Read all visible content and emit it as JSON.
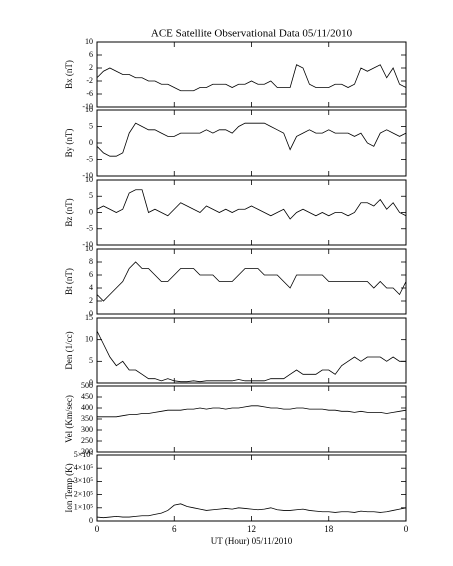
{
  "chart_data": [
    {
      "type": "line",
      "title": "ACE Satellite Observational Data   05/11/2010",
      "y_label": "Bx (nT)",
      "x": [
        0,
        0.5,
        1,
        1.5,
        2,
        2.5,
        3,
        3.5,
        4,
        4.5,
        5,
        5.5,
        6,
        6.5,
        7,
        7.5,
        8,
        8.5,
        9,
        9.5,
        10,
        10.5,
        11,
        11.5,
        12,
        12.5,
        13,
        13.5,
        14,
        14.5,
        15,
        15.5,
        16,
        16.5,
        17,
        17.5,
        18,
        18.5,
        19,
        19.5,
        20,
        20.5,
        21,
        21.5,
        22,
        22.5,
        23,
        23.5,
        24
      ],
      "values": [
        -1,
        1,
        2,
        1,
        0,
        0,
        -1,
        -1,
        -2,
        -2,
        -3,
        -3,
        -4,
        -5,
        -5,
        -5,
        -4,
        -4,
        -3,
        -3,
        -3,
        -4,
        -3,
        -3,
        -2,
        -3,
        -3,
        -2,
        -4,
        -4,
        -4,
        3,
        2,
        -3,
        -4,
        -4,
        -4,
        -3,
        -3,
        -4,
        -3,
        2,
        1,
        2,
        3,
        -1,
        2,
        -3,
        -4
      ],
      "color": "#000000",
      "xlim": [
        0,
        24
      ],
      "xticks": [
        0,
        6,
        12,
        18,
        24
      ],
      "ylim": [
        -10,
        10
      ],
      "yticks": [
        -10,
        -6,
        -2,
        2,
        6,
        10
      ]
    },
    {
      "type": "line",
      "y_label": "By (nT)",
      "x": [
        0,
        0.5,
        1,
        1.5,
        2,
        2.5,
        3,
        3.5,
        4,
        4.5,
        5,
        5.5,
        6,
        6.5,
        7,
        7.5,
        8,
        8.5,
        9,
        9.5,
        10,
        10.5,
        11,
        11.5,
        12,
        12.5,
        13,
        13.5,
        14,
        14.5,
        15,
        15.5,
        16,
        16.5,
        17,
        17.5,
        18,
        18.5,
        19,
        19.5,
        20,
        20.5,
        21,
        21.5,
        22,
        22.5,
        23,
        23.5,
        24
      ],
      "values": [
        -1,
        -3,
        -4,
        -4,
        -3,
        3,
        6,
        5,
        4,
        4,
        3,
        2,
        2,
        3,
        3,
        3,
        3,
        4,
        3,
        4,
        4,
        3,
        5,
        6,
        6,
        6,
        6,
        5,
        4,
        3,
        -2,
        2,
        3,
        4,
        3,
        3,
        4,
        3,
        3,
        3,
        2,
        3,
        0,
        -1,
        3,
        4,
        3,
        2,
        3
      ],
      "color": "#000000",
      "xlim": [
        0,
        24
      ],
      "xticks": [
        0,
        6,
        12,
        18,
        24
      ],
      "ylim": [
        -10,
        10
      ],
      "yticks": [
        -10,
        -5,
        0,
        5,
        10
      ]
    },
    {
      "type": "line",
      "y_label": "Bz (nT)",
      "x": [
        0,
        0.5,
        1,
        1.5,
        2,
        2.5,
        3,
        3.5,
        4,
        4.5,
        5,
        5.5,
        6,
        6.5,
        7,
        7.5,
        8,
        8.5,
        9,
        9.5,
        10,
        10.5,
        11,
        11.5,
        12,
        12.5,
        13,
        13.5,
        14,
        14.5,
        15,
        15.5,
        16,
        16.5,
        17,
        17.5,
        18,
        18.5,
        19,
        19.5,
        20,
        20.5,
        21,
        21.5,
        22,
        22.5,
        23,
        23.5,
        24
      ],
      "values": [
        1,
        2,
        1,
        0,
        1,
        6,
        7,
        7,
        0,
        1,
        0,
        -1,
        1,
        3,
        2,
        1,
        0,
        2,
        1,
        0,
        1,
        0,
        1,
        1,
        2,
        1,
        0,
        -1,
        0,
        1,
        -2,
        0,
        1,
        0,
        -1,
        0,
        -1,
        0,
        0,
        -1,
        0,
        3,
        3,
        2,
        4,
        1,
        3,
        0,
        -1
      ],
      "color": "#000000",
      "xlim": [
        0,
        24
      ],
      "xticks": [
        0,
        6,
        12,
        18,
        24
      ],
      "ylim": [
        -10,
        10
      ],
      "yticks": [
        -10,
        -5,
        0,
        5,
        10
      ]
    },
    {
      "type": "line",
      "y_label": "Bt (nT)",
      "x": [
        0,
        0.5,
        1,
        1.5,
        2,
        2.5,
        3,
        3.5,
        4,
        4.5,
        5,
        5.5,
        6,
        6.5,
        7,
        7.5,
        8,
        8.5,
        9,
        9.5,
        10,
        10.5,
        11,
        11.5,
        12,
        12.5,
        13,
        13.5,
        14,
        14.5,
        15,
        15.5,
        16,
        16.5,
        17,
        17.5,
        18,
        18.5,
        19,
        19.5,
        20,
        20.5,
        21,
        21.5,
        22,
        22.5,
        23,
        23.5,
        24
      ],
      "values": [
        3,
        2,
        3,
        4,
        5,
        7,
        8,
        7,
        7,
        6,
        5,
        5,
        6,
        7,
        7,
        7,
        6,
        6,
        6,
        5,
        5,
        5,
        6,
        7,
        7,
        7,
        6,
        6,
        6,
        5,
        4,
        6,
        6,
        6,
        6,
        6,
        5,
        5,
        5,
        5,
        5,
        5,
        5,
        4,
        5,
        4,
        4,
        3,
        5
      ],
      "color": "#000000",
      "xlim": [
        0,
        24
      ],
      "xticks": [
        0,
        6,
        12,
        18,
        24
      ],
      "ylim": [
        0,
        10
      ],
      "yticks": [
        0,
        2,
        4,
        6,
        8,
        10
      ]
    },
    {
      "type": "line",
      "y_label": "Den (1/cc)",
      "x": [
        0,
        0.5,
        1,
        1.5,
        2,
        2.5,
        3,
        3.5,
        4,
        4.5,
        5,
        5.5,
        6,
        6.5,
        7,
        7.5,
        8,
        8.5,
        9,
        9.5,
        10,
        10.5,
        11,
        11.5,
        12,
        12.5,
        13,
        13.5,
        14,
        14.5,
        15,
        15.5,
        16,
        16.5,
        17,
        17.5,
        18,
        18.5,
        19,
        19.5,
        20,
        20.5,
        21,
        21.5,
        22,
        22.5,
        23,
        23.5,
        24
      ],
      "values": [
        12,
        9,
        6,
        4,
        5,
        3,
        3,
        2,
        1,
        1,
        0.5,
        1,
        0.5,
        0.3,
        0.3,
        0.5,
        0.3,
        0.5,
        0.5,
        0.5,
        0.5,
        0.5,
        0.8,
        0.5,
        0.5,
        0.5,
        0.5,
        1,
        1,
        1,
        2,
        3,
        2,
        2,
        2,
        3,
        3,
        2,
        4,
        5,
        6,
        5,
        6,
        6,
        6,
        5,
        6,
        5,
        5
      ],
      "color": "#000000",
      "xlim": [
        0,
        24
      ],
      "xticks": [
        0,
        6,
        12,
        18,
        24
      ],
      "ylim": [
        0,
        15
      ],
      "yticks": [
        0,
        5,
        10,
        15
      ]
    },
    {
      "type": "line",
      "y_label": "Vel (Km/sec)",
      "x": [
        0,
        0.5,
        1,
        1.5,
        2,
        2.5,
        3,
        3.5,
        4,
        4.5,
        5,
        5.5,
        6,
        6.5,
        7,
        7.5,
        8,
        8.5,
        9,
        9.5,
        10,
        10.5,
        11,
        11.5,
        12,
        12.5,
        13,
        13.5,
        14,
        14.5,
        15,
        15.5,
        16,
        16.5,
        17,
        17.5,
        18,
        18.5,
        19,
        19.5,
        20,
        20.5,
        21,
        21.5,
        22,
        22.5,
        23,
        23.5,
        24
      ],
      "values": [
        360,
        360,
        360,
        360,
        365,
        370,
        370,
        375,
        375,
        380,
        385,
        390,
        390,
        390,
        395,
        395,
        400,
        395,
        400,
        400,
        395,
        400,
        400,
        405,
        410,
        410,
        405,
        400,
        400,
        395,
        395,
        400,
        400,
        395,
        395,
        395,
        390,
        390,
        385,
        385,
        380,
        385,
        380,
        380,
        380,
        375,
        380,
        385,
        390
      ],
      "color": "#000000",
      "xlim": [
        0,
        24
      ],
      "xticks": [
        0,
        6,
        12,
        18,
        24
      ],
      "ylim": [
        200,
        500
      ],
      "yticks": [
        200,
        250,
        300,
        350,
        400,
        450,
        500
      ]
    },
    {
      "type": "line",
      "y_label": "Ion Temp (K)",
      "x_label": "UT (Hour)   05/11/2010",
      "x": [
        0,
        0.5,
        1,
        1.5,
        2,
        2.5,
        3,
        3.5,
        4,
        4.5,
        5,
        5.5,
        6,
        6.5,
        7,
        7.5,
        8,
        8.5,
        9,
        9.5,
        10,
        10.5,
        11,
        11.5,
        12,
        12.5,
        13,
        13.5,
        14,
        14.5,
        15,
        15.5,
        16,
        16.5,
        17,
        17.5,
        18,
        18.5,
        19,
        19.5,
        20,
        20.5,
        21,
        21.5,
        22,
        22.5,
        23,
        23.5,
        24
      ],
      "values": [
        30000,
        25000,
        30000,
        35000,
        30000,
        30000,
        35000,
        40000,
        40000,
        50000,
        60000,
        80000,
        120000,
        130000,
        110000,
        100000,
        90000,
        80000,
        85000,
        90000,
        95000,
        90000,
        100000,
        95000,
        90000,
        85000,
        90000,
        100000,
        85000,
        80000,
        80000,
        85000,
        90000,
        80000,
        75000,
        70000,
        70000,
        65000,
        70000,
        70000,
        65000,
        75000,
        70000,
        70000,
        65000,
        70000,
        80000,
        90000,
        100000
      ],
      "color": "#000000",
      "xlim": [
        0,
        24
      ],
      "xticks": [
        0,
        6,
        12,
        18,
        {
          "value": 24,
          "label": "0"
        }
      ],
      "ylim": [
        0,
        500000
      ],
      "yticks": [
        0,
        {
          "value": 100000,
          "label": "1×10⁵"
        },
        {
          "value": 200000,
          "label": "2×10⁵"
        },
        {
          "value": 300000,
          "label": "3×10⁵"
        },
        {
          "value": 400000,
          "label": "4×10⁵"
        },
        {
          "value": 500000,
          "label": "5×10⁵"
        }
      ]
    }
  ]
}
